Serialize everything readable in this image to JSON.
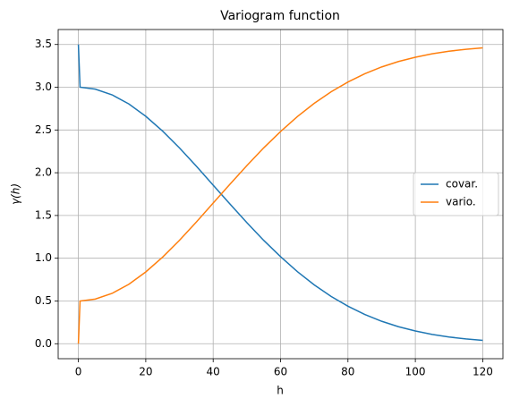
{
  "chart_data": {
    "type": "line",
    "title": "Variogram function",
    "x_label": "h",
    "y_label": "γ(h)",
    "x": [
      0,
      0.5,
      5,
      10,
      15,
      20,
      25,
      30,
      35,
      40,
      45,
      50,
      55,
      60,
      65,
      70,
      75,
      80,
      85,
      90,
      95,
      100,
      105,
      110,
      115,
      120
    ],
    "series": [
      {
        "name": "covar.",
        "color": "#1f77b4",
        "values": [
          3.5,
          3.0,
          2.978,
          2.911,
          2.804,
          2.66,
          2.487,
          2.29,
          2.077,
          1.855,
          1.633,
          1.416,
          1.209,
          1.018,
          0.843,
          0.688,
          0.553,
          0.439,
          0.342,
          0.263,
          0.199,
          0.149,
          0.109,
          0.079,
          0.056,
          0.04
        ]
      },
      {
        "name": "vario.",
        "color": "#ff7f0e",
        "values": [
          0,
          0.5,
          0.522,
          0.589,
          0.696,
          0.84,
          1.013,
          1.21,
          1.423,
          1.645,
          1.867,
          2.084,
          2.291,
          2.482,
          2.657,
          2.812,
          2.947,
          3.061,
          3.158,
          3.237,
          3.301,
          3.351,
          3.391,
          3.421,
          3.444,
          3.46
        ]
      }
    ],
    "xlim": [
      -6,
      126
    ],
    "ylim": [
      -0.175,
      3.675
    ],
    "xticks": [
      0,
      20,
      40,
      60,
      80,
      100,
      120
    ],
    "yticks": [
      {
        "value": 0,
        "label": "0.0"
      },
      0.5,
      {
        "value": 1,
        "label": "1.0"
      },
      1.5,
      {
        "value": 2,
        "label": "2.0"
      },
      2.5,
      {
        "value": 3,
        "label": "3.0"
      },
      3.5
    ],
    "grid": true,
    "legend": "center right"
  }
}
